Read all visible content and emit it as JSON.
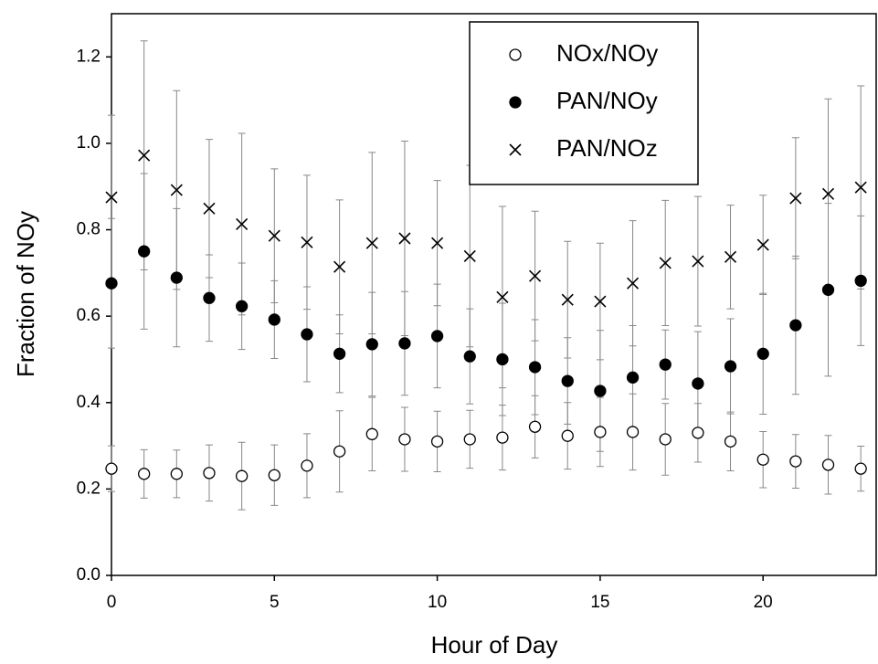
{
  "chart_data": {
    "type": "scatter",
    "x_label": "Hour of Day",
    "y_label": "Fraction of NOy",
    "x": [
      0,
      1,
      2,
      3,
      4,
      5,
      6,
      7,
      8,
      9,
      10,
      11,
      12,
      13,
      14,
      15,
      16,
      17,
      18,
      19,
      20,
      21,
      22,
      23
    ],
    "xlim": [
      0,
      23.5
    ],
    "xticks": [
      0,
      5,
      10,
      15,
      20
    ],
    "ylim": [
      0,
      1.3
    ],
    "yticks": [
      {
        "value": 0,
        "label": "0.0"
      },
      0.2,
      0.4,
      0.6,
      0.8,
      {
        "value": 1,
        "label": "1.0"
      },
      1.2
    ],
    "legend": "top-right",
    "series": [
      {
        "name": "NOx/NOy",
        "marker": "open-circle",
        "color": "#000000",
        "values": [
          0.247,
          0.235,
          0.235,
          0.237,
          0.23,
          0.232,
          0.254,
          0.287,
          0.327,
          0.315,
          0.31,
          0.315,
          0.319,
          0.344,
          0.323,
          0.332,
          0.332,
          0.315,
          0.33,
          0.31,
          0.268,
          0.264,
          0.256,
          0.247
        ],
        "errors": [
          0.053,
          0.056,
          0.055,
          0.065,
          0.078,
          0.07,
          0.074,
          0.094,
          0.085,
          0.074,
          0.07,
          0.067,
          0.075,
          0.072,
          0.077,
          0.08,
          0.088,
          0.083,
          0.068,
          0.068,
          0.065,
          0.062,
          0.068,
          0.052
        ]
      },
      {
        "name": "PAN/NOy",
        "marker": "filled-circle",
        "color": "#000000",
        "values": [
          0.676,
          0.75,
          0.689,
          0.642,
          0.623,
          0.592,
          0.558,
          0.513,
          0.535,
          0.537,
          0.554,
          0.507,
          0.5,
          0.482,
          0.45,
          0.427,
          0.458,
          0.488,
          0.444,
          0.484,
          0.513,
          0.579,
          0.661,
          0.682
        ],
        "errors": [
          0.15,
          0.18,
          0.16,
          0.1,
          0.1,
          0.09,
          0.11,
          0.09,
          0.12,
          0.12,
          0.12,
          0.11,
          0.13,
          0.11,
          0.1,
          0.14,
          0.12,
          0.08,
          0.12,
          0.11,
          0.14,
          0.16,
          0.2,
          0.15
        ]
      },
      {
        "name": "PAN/NOz",
        "marker": "cross",
        "color": "#000000",
        "values": [
          0.875,
          0.972,
          0.892,
          0.849,
          0.813,
          0.786,
          0.771,
          0.714,
          0.769,
          0.78,
          0.769,
          0.739,
          0.644,
          0.693,
          0.638,
          0.634,
          0.676,
          0.723,
          0.727,
          0.737,
          0.765,
          0.873,
          0.883,
          0.898
        ],
        "errors": [
          0.19,
          0.265,
          0.23,
          0.16,
          0.21,
          0.155,
          0.155,
          0.155,
          0.21,
          0.225,
          0.145,
          0.21,
          0.21,
          0.15,
          0.135,
          0.135,
          0.145,
          0.145,
          0.15,
          0.12,
          0.115,
          0.14,
          0.22,
          0.235
        ]
      }
    ]
  }
}
